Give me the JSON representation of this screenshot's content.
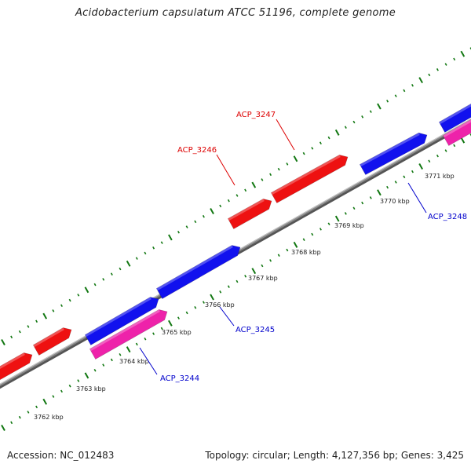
{
  "title": "Acidobacterium capsulatum ATCC 51196, complete genome",
  "footer": {
    "accession": "Accession: NC_012483",
    "summary": "Topology: circular; Length: 4,127,356 bp; Genes: 3,425"
  },
  "colors": {
    "forward_strand": "#ee1111",
    "reverse_strand": "#1111ee",
    "rna_or_other": "#ee22aa",
    "backbone": "#888888",
    "ticks": "#117711",
    "label_forward": "#dd0000",
    "label_reverse": "#0000cc"
  },
  "axis": {
    "unit": "kbp",
    "tick_labels": [
      "3762 kbp",
      "3763 kbp",
      "3764 kbp",
      "3765 kbp",
      "3766 kbp",
      "3767 kbp",
      "3768 kbp",
      "3769 kbp",
      "3770 kbp",
      "3771 kbp"
    ]
  },
  "genes": [
    {
      "name": "ACP_3244",
      "strand": "reverse"
    },
    {
      "name": "ACP_3245",
      "strand": "reverse"
    },
    {
      "name": "ACP_3246",
      "strand": "forward"
    },
    {
      "name": "ACP_3247",
      "strand": "forward"
    },
    {
      "name": "ACP_3248",
      "strand": "reverse"
    }
  ]
}
